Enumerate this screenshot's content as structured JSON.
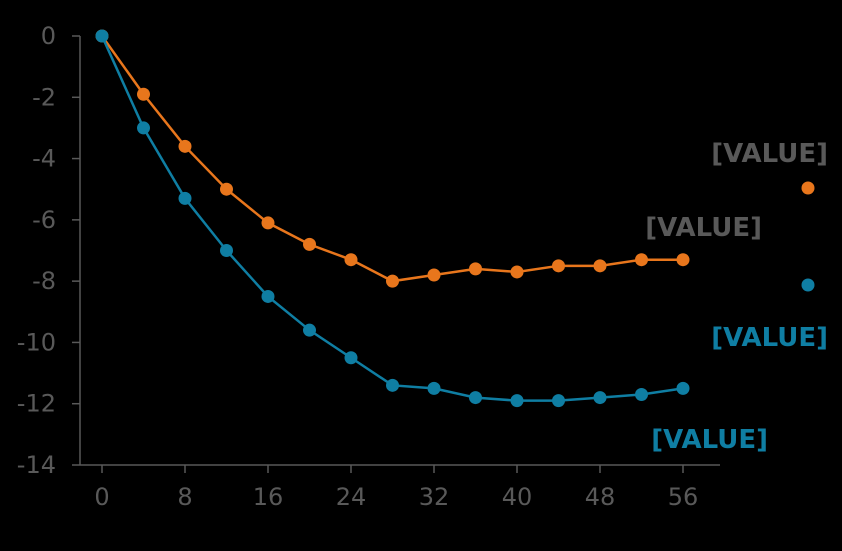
{
  "chart_data": {
    "type": "line",
    "title": "",
    "xlabel": "",
    "ylabel": "",
    "xlim": [
      0,
      56
    ],
    "ylim": [
      -14,
      0
    ],
    "x_ticks": [
      "0",
      "8",
      "16",
      "24",
      "32",
      "40",
      "48",
      "56"
    ],
    "y_ticks": [
      "0",
      "-2",
      "-4",
      "-6",
      "-8",
      "-10",
      "-12",
      "-14"
    ],
    "x": [
      0,
      4,
      8,
      12,
      16,
      20,
      24,
      28,
      32,
      36,
      40,
      44,
      48,
      52,
      56
    ],
    "series": [
      {
        "color": "#E8761C",
        "values": [
          0,
          -1.9,
          -3.6,
          -5.0,
          -6.1,
          -6.8,
          -7.3,
          -8.0,
          -7.8,
          -7.6,
          -7.7,
          -7.5,
          -7.5,
          -7.3,
          -7.3
        ],
        "end_label": "[VALUE]",
        "end_label_color": "#595959"
      },
      {
        "color": "#0F7EA3",
        "values": [
          0,
          -3.0,
          -5.3,
          -7.0,
          -8.5,
          -9.6,
          -10.5,
          -11.4,
          -11.5,
          -11.8,
          -11.9,
          -11.9,
          -11.8,
          -11.7,
          -11.5
        ],
        "end_label": "[VALUE]",
        "end_label_color": "#0F7EA3"
      }
    ],
    "legend": {
      "placement": "right",
      "entries": [
        {
          "label": "[VALUE]",
          "label_color": "#595959",
          "marker_color": "#E8761C"
        },
        {
          "label": "[VALUE]",
          "label_color": "#0F7EA3",
          "marker_color": "#0F7EA3"
        }
      ]
    },
    "grid": false,
    "axis_color": "#595959"
  }
}
